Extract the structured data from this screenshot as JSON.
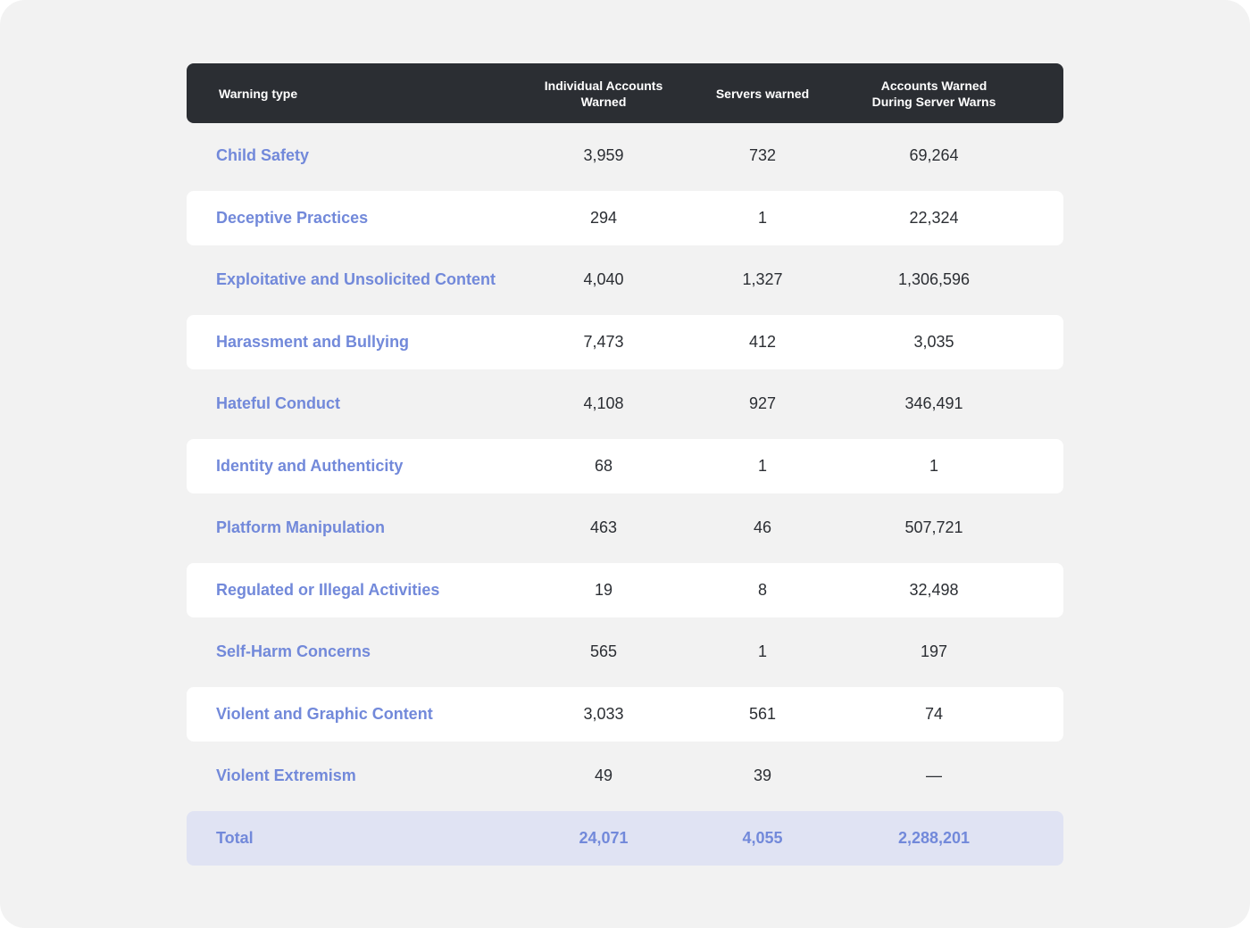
{
  "chart_data": {
    "type": "table",
    "columns": [
      "Warning type",
      "Individual Accounts\nWarned",
      "Servers warned",
      "Accounts Warned\nDuring Server Warns"
    ],
    "rows": [
      [
        "Child Safety",
        "3,959",
        "732",
        "69,264"
      ],
      [
        "Deceptive Practices",
        "294",
        "1",
        "22,324"
      ],
      [
        "Exploitative and Unsolicited Content",
        "4,040",
        "1,327",
        "1,306,596"
      ],
      [
        "Harassment and Bullying",
        "7,473",
        "412",
        "3,035"
      ],
      [
        "Hateful Conduct",
        "4,108",
        "927",
        "346,491"
      ],
      [
        "Identity and Authenticity",
        "68",
        "1",
        "1"
      ],
      [
        "Platform Manipulation",
        "463",
        "46",
        "507,721"
      ],
      [
        "Regulated or Illegal Activities",
        "19",
        "8",
        "32,498"
      ],
      [
        "Self-Harm Concerns",
        "565",
        "1",
        "197"
      ],
      [
        "Violent and Graphic Content",
        "3,033",
        "561",
        "74"
      ],
      [
        "Violent Extremism",
        "49",
        "39",
        "—"
      ]
    ],
    "total": [
      "Total",
      "24,071",
      "4,055",
      "2,288,201"
    ]
  },
  "colors": {
    "page_background": "#f2f2f2",
    "header_background": "#2b2e33",
    "header_text": "#ffffff",
    "label_text": "#7289da",
    "value_text": "#2b2e33",
    "alternate_row": "#ffffff",
    "total_row": "#e0e3f3"
  }
}
